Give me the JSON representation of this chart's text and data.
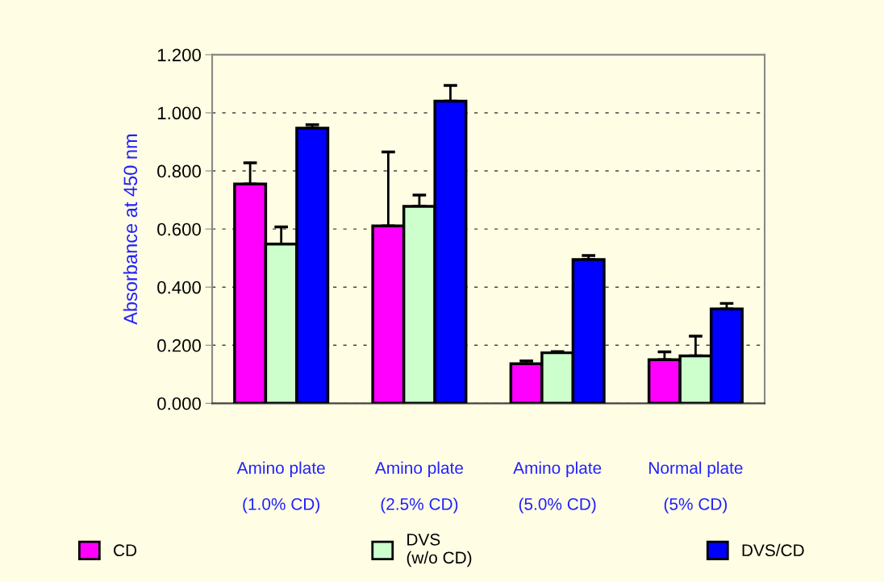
{
  "chart_data": {
    "type": "bar",
    "ylabel": "Absorbance at 450 nm",
    "categories": [
      "Amino plate\n\n(1.0% CD)",
      "Amino plate\n\n(2.5% CD)",
      "Amino plate\n\n(5.0% CD)",
      "Normal plate\n\n(5% CD)"
    ],
    "series": [
      {
        "name": "CD",
        "color": "#ff00ff",
        "values": [
          0.755,
          0.611,
          0.136,
          0.15
        ],
        "errors": [
          [
            0.755,
            0.828
          ],
          [
            0.611,
            0.865
          ],
          [
            0.136,
            0.146
          ],
          [
            0.15,
            0.177
          ]
        ]
      },
      {
        "name": "DVS\n(w/o CD)",
        "color": "#ccffcc",
        "values": [
          0.548,
          0.678,
          0.174,
          0.163
        ],
        "errors": [
          [
            0.548,
            0.607
          ],
          [
            0.678,
            0.717
          ],
          [
            0.174,
            0.178
          ],
          [
            0.163,
            0.231
          ]
        ]
      },
      {
        "name": "DVS/CD",
        "color": "#0000ff",
        "values": [
          0.947,
          1.04,
          0.495,
          0.325
        ],
        "errors": [
          [
            0.947,
            0.959
          ],
          [
            1.04,
            1.094
          ],
          [
            0.495,
            0.509
          ],
          [
            0.325,
            0.344
          ]
        ]
      }
    ],
    "ylim": [
      0,
      1.2
    ],
    "yticks": [
      {
        "value": 0,
        "label": "0.000"
      },
      {
        "value": 0.2,
        "label": "0.200"
      },
      {
        "value": 0.4,
        "label": "0.400"
      },
      {
        "value": 0.6,
        "label": "0.600"
      },
      {
        "value": 0.8,
        "label": "0.800"
      },
      {
        "value": 1.0,
        "label": "1.000"
      },
      {
        "value": 1.2,
        "label": "1.200"
      }
    ],
    "grid": "y",
    "legend": "bottom"
  }
}
